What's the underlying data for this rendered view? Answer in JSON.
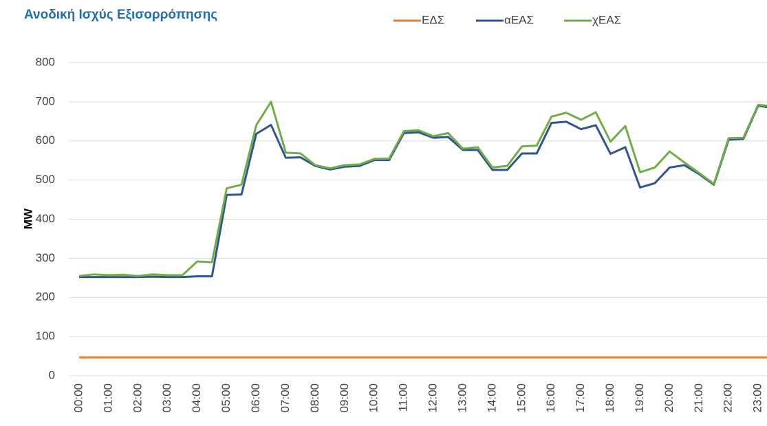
{
  "chart_data": {
    "type": "line",
    "title": "Ανοδική Ισχύς Εξισορρόπησης",
    "y_label": "MW",
    "categories": [
      "00:00",
      null,
      "01:00",
      null,
      "02:00",
      null,
      "03:00",
      null,
      "04:00",
      null,
      "05:00",
      null,
      "06:00",
      null,
      "07:00",
      null,
      "08:00",
      null,
      "09:00",
      null,
      "10:00",
      null,
      "11:00",
      null,
      "12:00",
      null,
      "13:00",
      null,
      "14:00",
      null,
      "15:00",
      null,
      "16:00",
      null,
      "17:00",
      null,
      "18:00",
      null,
      "19:00",
      null,
      "20:00",
      null,
      "21:00",
      null,
      "22:00",
      null,
      "23:00",
      null
    ],
    "series": [
      {
        "name": "ΕΔΣ",
        "color": "#ed7d31",
        "values": [
          47,
          47,
          47,
          47,
          47,
          47,
          47,
          47,
          47,
          47,
          47,
          47,
          47,
          47,
          47,
          47,
          47,
          47,
          47,
          47,
          47,
          47,
          47,
          47,
          47,
          47,
          47,
          47,
          47,
          47,
          47,
          47,
          47,
          47,
          47,
          47,
          47,
          47,
          47,
          47,
          47,
          47,
          47,
          47,
          47,
          47,
          47,
          47
        ]
      },
      {
        "name": "αΕΑΣ",
        "color": "#2f5597",
        "values": [
          252,
          252,
          252,
          252,
          252,
          253,
          252,
          252,
          254,
          254,
          462,
          463,
          618,
          641,
          557,
          558,
          536,
          527,
          534,
          536,
          551,
          551,
          620,
          622,
          608,
          610,
          577,
          577,
          526,
          526,
          568,
          568,
          646,
          649,
          630,
          640,
          567,
          584,
          481,
          492,
          532,
          538,
          515,
          488,
          603,
          605,
          690,
          684
        ]
      },
      {
        "name": "χΕΑΣ",
        "color": "#70ad47",
        "values": [
          255,
          259,
          257,
          258,
          255,
          259,
          257,
          257,
          292,
          290,
          479,
          488,
          640,
          700,
          570,
          568,
          538,
          530,
          538,
          540,
          554,
          555,
          625,
          627,
          612,
          620,
          580,
          584,
          532,
          536,
          586,
          588,
          662,
          672,
          654,
          673,
          598,
          638,
          520,
          532,
          573,
          545,
          518,
          490,
          607,
          608,
          692,
          689
        ]
      }
    ],
    "ylim": [
      0,
      800
    ],
    "yticks": [
      0,
      100,
      200,
      300,
      400,
      500,
      600,
      700,
      800
    ],
    "grid": true,
    "legend": "top"
  }
}
